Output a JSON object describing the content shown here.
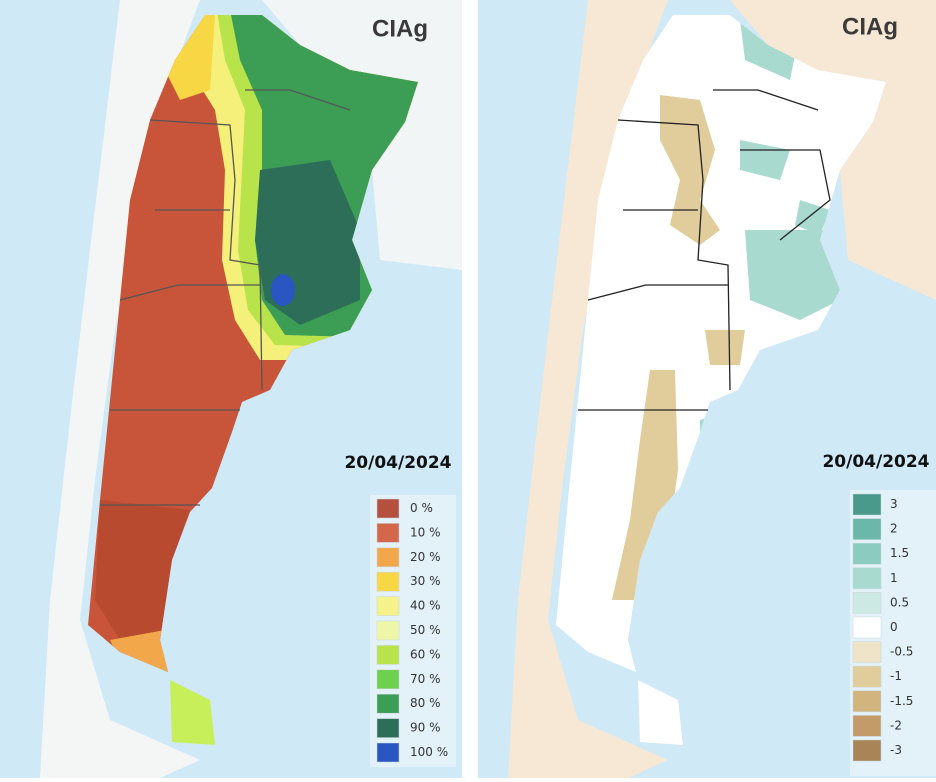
{
  "panels": [
    {
      "logo": "CIAg",
      "date": "20/04/2024",
      "legend": [
        {
          "label": "0 %",
          "color": "#b5503f"
        },
        {
          "label": "10 %",
          "color": "#d4674a"
        },
        {
          "label": "20 %",
          "color": "#f2a84a"
        },
        {
          "label": "30 %",
          "color": "#f7d743"
        },
        {
          "label": "40 %",
          "color": "#f5f28a"
        },
        {
          "label": "50 %",
          "color": "#eef7a8"
        },
        {
          "label": "60 %",
          "color": "#b8e34a"
        },
        {
          "label": "70 %",
          "color": "#6fcf4f"
        },
        {
          "label": "80 %",
          "color": "#3c9e55"
        },
        {
          "label": "90 %",
          "color": "#2d6e58"
        },
        {
          "label": "100 %",
          "color": "#2a56c2"
        }
      ]
    },
    {
      "logo": "CIAg",
      "date": "20/04/2024",
      "legend": [
        {
          "label": "3",
          "color": "#4a9a8c"
        },
        {
          "label": "2",
          "color": "#6bb8aa"
        },
        {
          "label": "1.5",
          "color": "#8ccbbf"
        },
        {
          "label": "1",
          "color": "#a9dad0"
        },
        {
          "label": "0.5",
          "color": "#cde9e3"
        },
        {
          "label": "0",
          "color": "#ffffff"
        },
        {
          "label": "-0.5",
          "color": "#efe3c8"
        },
        {
          "label": "-1",
          "color": "#e1cc9c"
        },
        {
          "label": "-1.5",
          "color": "#d2b47f"
        },
        {
          "label": "-2",
          "color": "#c29b68"
        },
        {
          "label": "-3",
          "color": "#a98457"
        }
      ]
    }
  ]
}
